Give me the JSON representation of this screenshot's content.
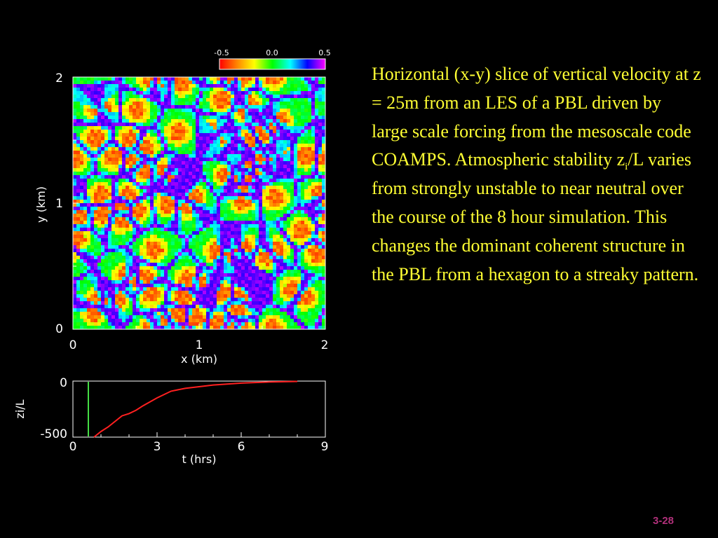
{
  "slide": {
    "description_parts": [
      "Horizontal (x-y) slice of vertical velocity at z = 25m from an LES of a PBL driven by large scale forcing from the mesoscale code COAMPS. Atmospheric stability z",
      "i",
      "/L varies from strongly unstable to near neutral over the course of the 8 hour simulation. This changes the dominant coherent structure in the PBL from a hexagon to a streaky pattern."
    ],
    "page_number": "3-28"
  },
  "chart_data": [
    {
      "type": "heatmap",
      "xlabel": "x (km)",
      "ylabel": "y (km)",
      "xlim": [
        0,
        2
      ],
      "ylim": [
        0,
        2
      ],
      "x_ticks": [
        "0",
        "1",
        "2"
      ],
      "y_ticks": [
        "0",
        "1",
        "2"
      ],
      "colorbar": {
        "ticks": [
          "-0.5",
          "0.0",
          "0.5"
        ],
        "range": [
          -0.5,
          0.5
        ],
        "colors": [
          "#ff0000",
          "#ff8800",
          "#ffff00",
          "#00ff00",
          "#00ffff",
          "#0000ff",
          "#ff00ff"
        ]
      },
      "field": "vertical velocity at z = 25m",
      "pattern": "cellular (hexagon-like) network: green/cyan background with blue-purple boundaries and red-yellow cell interiors"
    },
    {
      "type": "line",
      "xlabel": "t (hrs)",
      "ylabel": "zi/L",
      "xlim": [
        0,
        9
      ],
      "ylim": [
        -500,
        0
      ],
      "x_ticks": [
        "0",
        "3",
        "6",
        "9"
      ],
      "y_ticks": [
        "0",
        "-500"
      ],
      "series": [
        {
          "color": "#ff2020",
          "x": [
            0.75,
            1.0,
            1.25,
            1.5,
            1.75,
            2.0,
            2.25,
            2.5,
            3.0,
            3.5,
            4.0,
            5.0,
            6.0,
            7.0,
            8.0
          ],
          "y": [
            -500,
            -450,
            -410,
            -360,
            -310,
            -290,
            -260,
            -220,
            -150,
            -90,
            -65,
            -35,
            -18,
            -8,
            -3
          ]
        }
      ],
      "marker_line": {
        "x": 0.55,
        "color": "#44dd44"
      }
    }
  ]
}
